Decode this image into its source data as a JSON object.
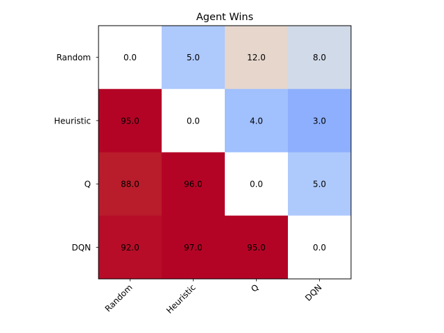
{
  "chart_data": {
    "type": "heatmap",
    "title": "Agent Wins",
    "xlabel": "",
    "ylabel": "",
    "row_labels": [
      "Random",
      "Heuristic",
      "Q",
      "DQN"
    ],
    "col_labels": [
      "Random",
      "Heuristic",
      "Q",
      "DQN"
    ],
    "values": [
      [
        0.0,
        5.0,
        12.0,
        8.0
      ],
      [
        95.0,
        0.0,
        4.0,
        3.0
      ],
      [
        88.0,
        96.0,
        0.0,
        5.0
      ],
      [
        92.0,
        97.0,
        95.0,
        0.0
      ]
    ],
    "cell_label_format": "one-decimal",
    "colormap": "coolwarm",
    "diagonal_color": "#ffffff",
    "cell_colors": [
      [
        "#ffffff",
        "#aec9fc",
        "#e6d6cc",
        "#d1dae8"
      ],
      [
        "#b40426",
        "#ffffff",
        "#a0c0fe",
        "#8daffd"
      ],
      [
        "#b91c2a",
        "#b40426",
        "#ffffff",
        "#aec9fc"
      ],
      [
        "#b70d28",
        "#b40426",
        "#b40426",
        "#ffffff"
      ]
    ],
    "xtick_rotation_deg": 45,
    "grid": false,
    "legend": "none"
  }
}
